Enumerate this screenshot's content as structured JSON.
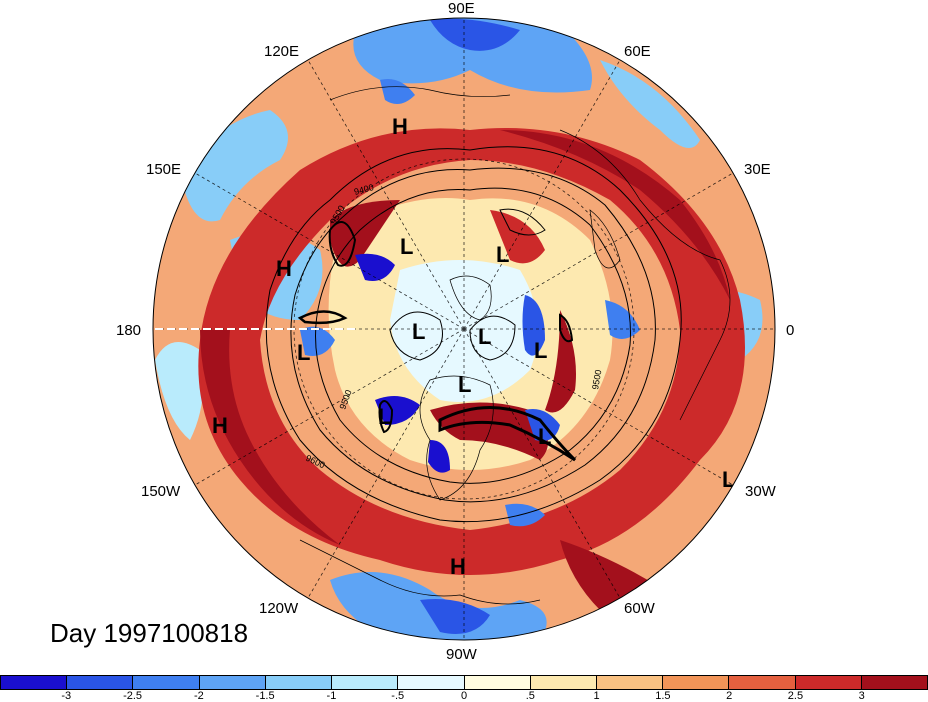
{
  "title": "Day 1997100818",
  "longitude_labels": {
    "deg90E": "90E",
    "deg60E": "60E",
    "deg120E": "120E",
    "deg150E": "150E",
    "deg30E": "30E",
    "deg180": "180",
    "deg0": "0",
    "deg150W": "150W",
    "deg30W": "30W",
    "deg120W": "120W",
    "deg60W": "60W",
    "deg90W": "90W"
  },
  "pressure_centers": [
    {
      "type": "H",
      "label": "H"
    },
    {
      "type": "H",
      "label": "H"
    },
    {
      "type": "H",
      "label": "H"
    },
    {
      "type": "H",
      "label": "H"
    },
    {
      "type": "L",
      "label": "L"
    },
    {
      "type": "L",
      "label": "L"
    },
    {
      "type": "L",
      "label": "L"
    },
    {
      "type": "L",
      "label": "L"
    },
    {
      "type": "L",
      "label": "L"
    },
    {
      "type": "L",
      "label": "L"
    },
    {
      "type": "L",
      "label": "L"
    },
    {
      "type": "L",
      "label": "L"
    },
    {
      "type": "L",
      "label": "L"
    },
    {
      "type": "L",
      "label": "L"
    }
  ],
  "contour_labels": [
    "9400",
    "9500",
    "9600",
    "9500",
    "9500"
  ],
  "colorbar": {
    "colors": [
      "#1a0fcf",
      "#2a55e6",
      "#3f7ff0",
      "#5ea4f5",
      "#88cdf8",
      "#b9ebfc",
      "#e6f9ff",
      "#fffce0",
      "#fde9b0",
      "#f9c182",
      "#f19458",
      "#e4603f",
      "#cc2a2a",
      "#a3101c"
    ],
    "tick_labels": [
      "-3",
      "-2.5",
      "-2",
      "-1.5",
      "-1",
      "-.5",
      "0",
      ".5",
      "1",
      "1.5",
      "2",
      "2.5",
      "3"
    ]
  },
  "colors": {
    "dark_red": "#a3101c",
    "red": "#cc2a2a",
    "light_blue": "#88cdf8",
    "blue": "#3f7ff0",
    "dark_blue": "#1a0fcf"
  }
}
